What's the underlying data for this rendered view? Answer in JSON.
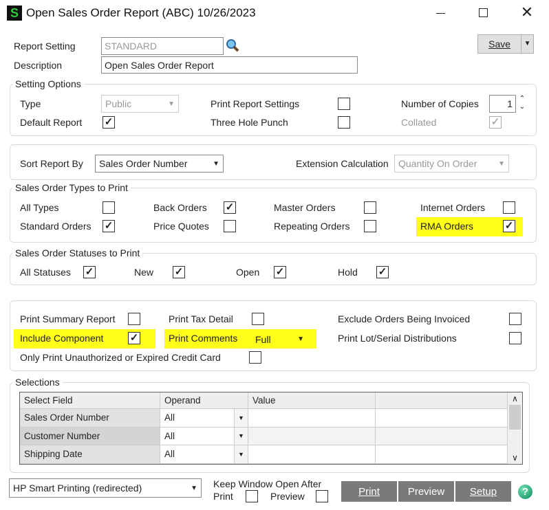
{
  "window": {
    "title": "Open Sales Order Report (ABC) 10/26/2023",
    "app_icon": "S"
  },
  "header": {
    "report_setting_label": "Report Setting",
    "report_setting_value": "STANDARD",
    "description_label": "Description",
    "description_value": "Open Sales Order Report",
    "save_label": "Save"
  },
  "setting_options": {
    "legend": "Setting Options",
    "type_label": "Type",
    "type_value": "Public",
    "default_report_label": "Default Report",
    "default_report": true,
    "print_report_settings_label": "Print Report Settings",
    "print_report_settings": false,
    "three_hole_punch_label": "Three Hole Punch",
    "three_hole_punch": false,
    "copies_label": "Number of Copies",
    "copies_value": "1",
    "collated_label": "Collated",
    "collated": true
  },
  "sort": {
    "sort_label": "Sort Report By",
    "sort_value": "Sales Order Number",
    "extension_label": "Extension Calculation",
    "extension_value": "Quantity On Order"
  },
  "types": {
    "legend": "Sales Order Types to Print",
    "items": [
      {
        "label": "All Types",
        "checked": false
      },
      {
        "label": "Back Orders",
        "checked": true
      },
      {
        "label": "Master Orders",
        "checked": false
      },
      {
        "label": "Internet Orders",
        "checked": false
      },
      {
        "label": "Standard Orders",
        "checked": true
      },
      {
        "label": "Price Quotes",
        "checked": false
      },
      {
        "label": "Repeating Orders",
        "checked": false
      },
      {
        "label": "RMA Orders",
        "checked": true
      }
    ]
  },
  "statuses": {
    "legend": "Sales Order Statuses to Print",
    "items": [
      {
        "label": "All Statuses",
        "checked": true
      },
      {
        "label": "New",
        "checked": true
      },
      {
        "label": "Open",
        "checked": true
      },
      {
        "label": "Hold",
        "checked": true
      }
    ]
  },
  "options": {
    "print_summary_label": "Print Summary Report",
    "print_summary": false,
    "print_tax_label": "Print Tax Detail",
    "print_tax": false,
    "exclude_invoiced_label": "Exclude Orders Being Invoiced",
    "exclude_invoiced": false,
    "include_component_label": "Include Component",
    "include_component": true,
    "print_comments_label": "Print Comments",
    "print_comments_value": "Full",
    "print_lot_label": "Print Lot/Serial Distributions",
    "print_lot": false,
    "unauthorized_label": "Only Print Unauthorized or Expired Credit Card",
    "unauthorized": false
  },
  "selections": {
    "legend": "Selections",
    "columns": [
      "Select Field",
      "Operand",
      "Value",
      ""
    ],
    "rows": [
      {
        "field": "Sales Order Number",
        "operand": "All",
        "value": ""
      },
      {
        "field": "Customer Number",
        "operand": "All",
        "value": ""
      },
      {
        "field": "Shipping Date",
        "operand": "All",
        "value": ""
      }
    ]
  },
  "footer": {
    "printer": "HP Smart Printing (redirected)",
    "keep_open_label": "Keep Window Open After",
    "print_label": "Print",
    "print_checked": false,
    "preview_label": "Preview",
    "preview_checked": false,
    "print_button": "Print",
    "preview_button": "Preview",
    "setup_button": "Setup",
    "help": "?"
  },
  "colors": {
    "highlight": "#ffff1a",
    "button": "#7a7a7a",
    "app_icon_bg": "#111",
    "app_icon_fg": "#2ecc40"
  }
}
